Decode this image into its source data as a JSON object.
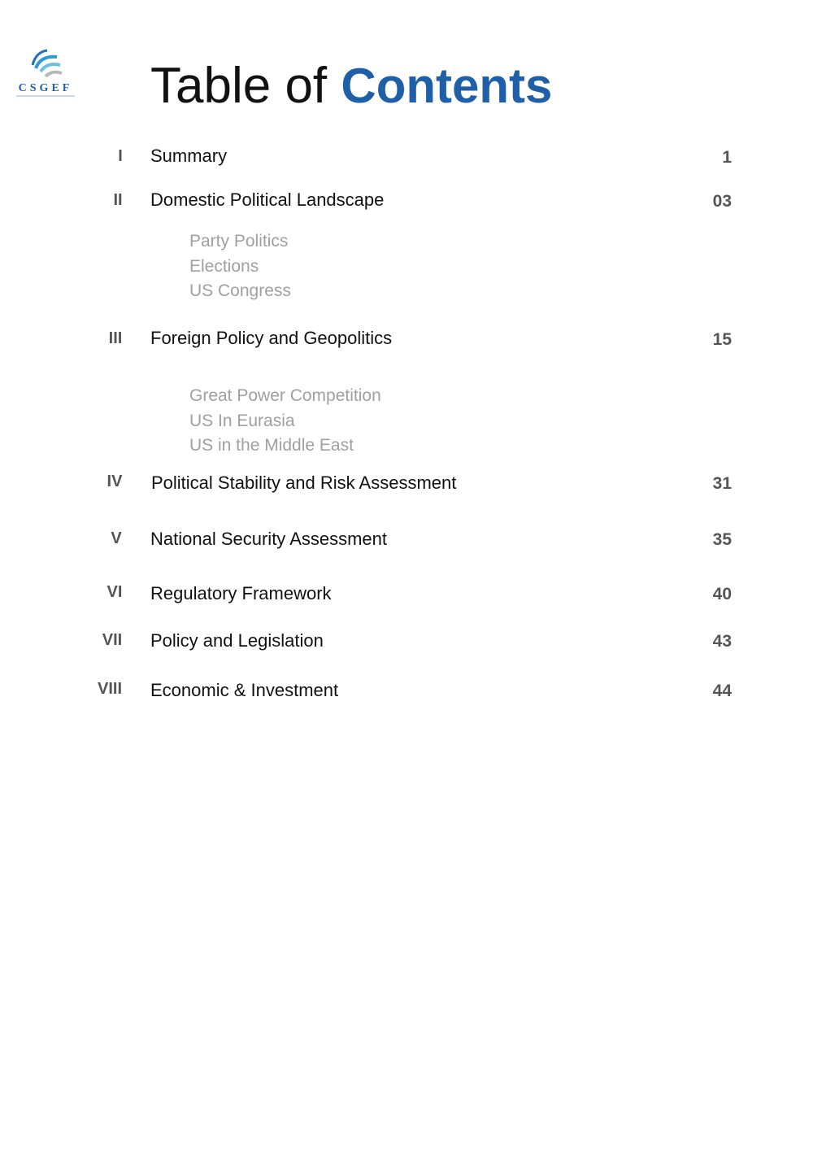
{
  "logo": {
    "text": "CSGEF",
    "color": "#1f5fa8"
  },
  "header": {
    "title_plain": "Table of",
    "title_accent": "Contents",
    "accent_color": "#1f5fa8"
  },
  "entries": [
    {
      "numeral": "I",
      "title": "Summary",
      "page": "1",
      "subitems": []
    },
    {
      "numeral": "II",
      "title": "Domestic  Political Landscape",
      "page": "03",
      "subitems": [
        "Party Politics",
        "Elections",
        "US Congress"
      ]
    },
    {
      "numeral": "III",
      "title": "Foreign Policy and Geopolitics",
      "page": "15",
      "subitems": [
        "Great Power Competition",
        "US In Eurasia",
        "US in the Middle East"
      ]
    },
    {
      "numeral": "IV",
      "title": "Political Stability and Risk Assessment",
      "page": "31",
      "subitems": []
    },
    {
      "numeral": "V",
      "title": "National Security Assessment",
      "page": "35",
      "subitems": []
    },
    {
      "numeral": "VI",
      "title": "Regulatory Framework",
      "page": "40",
      "subitems": []
    },
    {
      "numeral": "VII",
      "title": "Policy and Legislation",
      "page": "43",
      "subitems": []
    },
    {
      "numeral": "VIII",
      "title": "Economic & Investment",
      "page": "44",
      "subitems": []
    }
  ]
}
